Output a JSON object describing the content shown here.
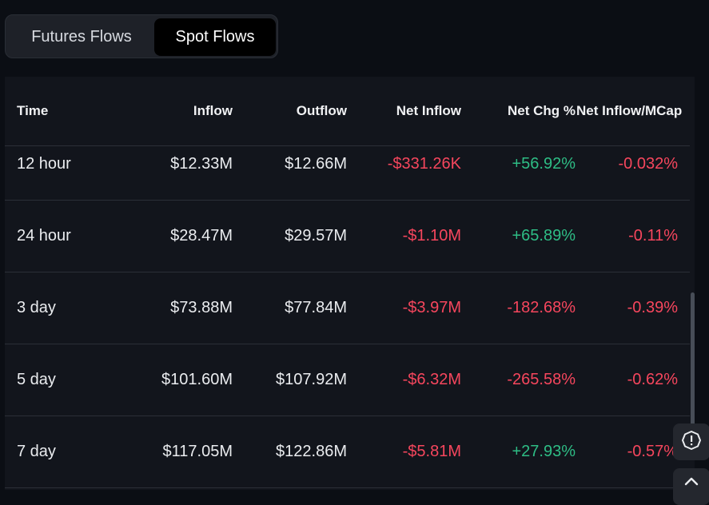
{
  "tabs": [
    {
      "label": "Futures Flows",
      "active": false
    },
    {
      "label": "Spot Flows",
      "active": true
    }
  ],
  "table": {
    "headers": {
      "time": "Time",
      "inflow": "Inflow",
      "outflow": "Outflow",
      "net_inflow": "Net Inflow",
      "net_chg": "Net Chg %",
      "net_inflow_mcap": "Net Inflow/MCap"
    },
    "rows": [
      {
        "time": "12 hour",
        "inflow": "$12.33M",
        "outflow": "$12.66M",
        "net_inflow": "-$331.26K",
        "net_chg": "+56.92%",
        "mcap": "-0.032%"
      },
      {
        "time": "24 hour",
        "inflow": "$28.47M",
        "outflow": "$29.57M",
        "net_inflow": "-$1.10M",
        "net_chg": "+65.89%",
        "mcap": "-0.11%"
      },
      {
        "time": "3 day",
        "inflow": "$73.88M",
        "outflow": "$77.84M",
        "net_inflow": "-$3.97M",
        "net_chg": "-182.68%",
        "mcap": "-0.39%"
      },
      {
        "time": "5 day",
        "inflow": "$101.60M",
        "outflow": "$107.92M",
        "net_inflow": "-$6.32M",
        "net_chg": "-265.58%",
        "mcap": "-0.62%"
      },
      {
        "time": "7 day",
        "inflow": "$117.05M",
        "outflow": "$122.86M",
        "net_inflow": "-$5.81M",
        "net_chg": "+27.93%",
        "mcap": "-0.57%"
      }
    ]
  },
  "colors": {
    "positive": "#2ebd85",
    "negative": "#f6465d"
  },
  "floating_buttons": [
    "feedback-alert-icon",
    "scroll-to-top-icon"
  ]
}
